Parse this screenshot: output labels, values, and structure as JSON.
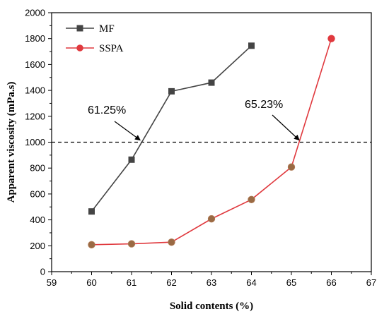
{
  "chart_data": {
    "type": "line",
    "xlabel": "Solid contents (%)",
    "ylabel": "Apparent viscosity (mPa.s)",
    "xlim": [
      59,
      67
    ],
    "ylim": [
      0,
      2000
    ],
    "xticks": [
      59,
      60,
      61,
      62,
      63,
      64,
      65,
      66,
      67
    ],
    "yticks": [
      0,
      200,
      400,
      600,
      800,
      1000,
      1200,
      1400,
      1600,
      1800,
      2000
    ],
    "grid": false,
    "legend_position": "top-left",
    "reference_line": {
      "y": 1000,
      "style": "dashed"
    },
    "series": [
      {
        "name": "MF",
        "color": "#444444",
        "marker": "square",
        "x": [
          60,
          61,
          62,
          63,
          64
        ],
        "y": [
          465,
          865,
          1393,
          1460,
          1745
        ]
      },
      {
        "name": "SSPA",
        "color": "#e0393e",
        "marker": "circle",
        "x": [
          60,
          61,
          62,
          63,
          64,
          65,
          66
        ],
        "y": [
          208,
          215,
          228,
          408,
          557,
          808,
          1800
        ]
      }
    ],
    "annotations": [
      {
        "text": "61.25%",
        "x": 61.25,
        "y": 1000
      },
      {
        "text": "65.23%",
        "x": 65.23,
        "y": 1000
      }
    ]
  }
}
